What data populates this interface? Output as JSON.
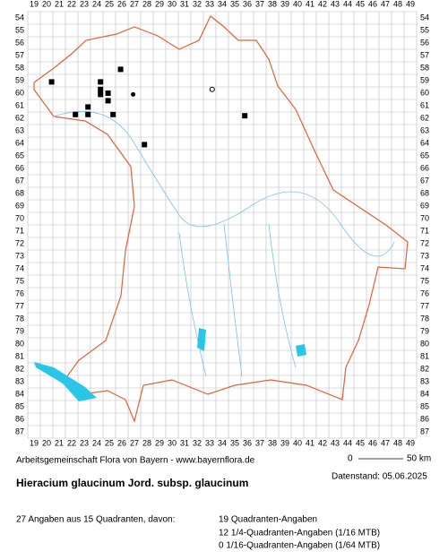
{
  "map": {
    "columns": [
      19,
      20,
      21,
      22,
      23,
      24,
      25,
      26,
      27,
      28,
      29,
      30,
      31,
      32,
      33,
      34,
      35,
      36,
      37,
      38,
      39,
      40,
      41,
      42,
      43,
      44,
      45,
      46,
      47,
      48,
      49
    ],
    "rows": [
      54,
      55,
      56,
      57,
      58,
      59,
      60,
      61,
      62,
      63,
      64,
      65,
      66,
      67,
      68,
      69,
      70,
      71,
      72,
      73,
      74,
      75,
      76,
      77,
      78,
      79,
      80,
      81,
      82,
      83,
      84,
      85,
      86,
      87
    ],
    "squares": [
      {
        "col": 20.4,
        "row": 59.1
      },
      {
        "col": 25.9,
        "row": 58.1
      },
      {
        "col": 24.3,
        "row": 59.1
      },
      {
        "col": 24.3,
        "row": 59.7
      },
      {
        "col": 24.3,
        "row": 60.1
      },
      {
        "col": 24.9,
        "row": 60.0
      },
      {
        "col": 24.9,
        "row": 60.6
      },
      {
        "col": 23.3,
        "row": 61.1
      },
      {
        "col": 23.3,
        "row": 61.7
      },
      {
        "col": 22.3,
        "row": 61.7
      },
      {
        "col": 25.3,
        "row": 61.7
      },
      {
        "col": 27.8,
        "row": 64.1
      },
      {
        "col": 35.8,
        "row": 61.8
      }
    ],
    "filled_circles": [
      {
        "col": 26.9,
        "row": 60.1
      }
    ],
    "open_circles": [
      {
        "col": 33.2,
        "row": 59.7
      }
    ]
  },
  "credit": "Arbeitsgemeinschaft Flora von Bayern - www.bayernflora.de",
  "scale": {
    "start": "0",
    "end": "50 km"
  },
  "date": "Datenstand: 05.06.2025",
  "title": "Hieracium glaucinum Jord. subsp. glaucinum",
  "summary": "27 Angaben aus 15 Quadranten, davon:",
  "details": [
    "19 Quadranten-Angaben",
    "12 1/4-Quadranten-Angaben (1/16 MTB)",
    "0 1/16-Quadranten-Angaben (1/64 MTB)"
  ]
}
